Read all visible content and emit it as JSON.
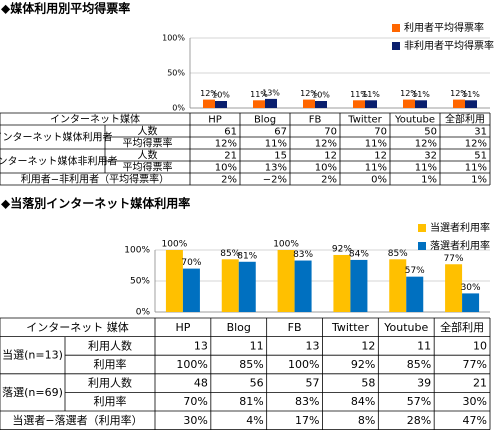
{
  "chart_data": [
    {
      "type": "bar",
      "title": "◆媒体利用別平均得票率",
      "categories": [
        "HP",
        "Blog",
        "FB",
        "Twitter",
        "Youtube",
        "全部利用"
      ],
      "series": [
        {
          "name": "利用者平均得票率",
          "color": "#ff6600",
          "values": [
            12,
            11,
            12,
            11,
            12,
            12
          ],
          "value_labels": [
            "12%",
            "11%",
            "12%",
            "11%",
            "12%",
            "12%"
          ]
        },
        {
          "name": "非利用者平均得票率",
          "color": "#0a1f6e",
          "values": [
            10,
            13,
            10,
            11,
            11,
            11
          ],
          "value_labels": [
            "10%",
            "13%",
            "10%",
            "11%",
            "11%",
            "11%"
          ]
        }
      ],
      "ylim": [
        0,
        100
      ],
      "yticks": [
        {
          "value": 0,
          "label": "0%"
        },
        {
          "value": 50,
          "label": "50%"
        },
        {
          "value": 100,
          "label": "100%"
        }
      ],
      "grid": true,
      "legend": "top-right",
      "table": {
        "header": {
          "label": "インターネット媒体",
          "columns": [
            "HP",
            "Blog",
            "FB",
            "Twitter",
            "Youtube",
            "全部利用"
          ]
        },
        "groups": [
          {
            "label": "インターネット媒体利用者",
            "rows": [
              {
                "label": "人数",
                "cells": [
                  "61",
                  "67",
                  "70",
                  "70",
                  "50",
                  "31"
                ]
              },
              {
                "label": "平均得票率",
                "cells": [
                  "12%",
                  "11%",
                  "12%",
                  "11%",
                  "12%",
                  "12%"
                ]
              }
            ]
          },
          {
            "label": "インターネット媒体非利用者",
            "rows": [
              {
                "label": "人数",
                "cells": [
                  "21",
                  "15",
                  "12",
                  "12",
                  "32",
                  "51"
                ]
              },
              {
                "label": "平均得票率",
                "cells": [
                  "10%",
                  "13%",
                  "10%",
                  "11%",
                  "11%",
                  "11%"
                ]
              }
            ]
          }
        ],
        "footer": {
          "label": "利用者−非利用者（平均得票率）",
          "cells": [
            "2%",
            "−2%",
            "2%",
            "0%",
            "1%",
            "1%"
          ]
        }
      }
    },
    {
      "type": "bar",
      "title": "◆当落別インターネット媒体利用率",
      "categories": [
        "HP",
        "Blog",
        "FB",
        "Twitter",
        "Youtube",
        "全部利用"
      ],
      "series": [
        {
          "name": "当選者利用率",
          "color": "#ffc000",
          "values": [
            100,
            85,
            100,
            92,
            85,
            77
          ],
          "value_labels": [
            "100%",
            "85%",
            "100%",
            "92%",
            "85%",
            "77%"
          ]
        },
        {
          "name": "落選者利用率",
          "color": "#0070c0",
          "values": [
            70,
            81,
            83,
            84,
            57,
            30
          ],
          "value_labels": [
            "70%",
            "81%",
            "83%",
            "84%",
            "57%",
            "30%"
          ]
        }
      ],
      "ylim": [
        0,
        100
      ],
      "yticks": [
        {
          "value": 0,
          "label": "0%"
        },
        {
          "value": 50,
          "label": "50%"
        },
        {
          "value": 100,
          "label": "100%"
        }
      ],
      "grid": true,
      "legend": "top-right",
      "table": {
        "header": {
          "label": "インターネット 媒体",
          "columns": [
            "HP",
            "Blog",
            "FB",
            "Twitter",
            "Youtube",
            "全部利用"
          ]
        },
        "groups": [
          {
            "label": "当選(n=13)",
            "rows": [
              {
                "label": "利用人数",
                "cells": [
                  "13",
                  "11",
                  "13",
                  "12",
                  "11",
                  "10"
                ]
              },
              {
                "label": "利用率",
                "cells": [
                  "100%",
                  "85%",
                  "100%",
                  "92%",
                  "85%",
                  "77%"
                ]
              }
            ]
          },
          {
            "label": "落選(n=69)",
            "rows": [
              {
                "label": "利用人数",
                "cells": [
                  "48",
                  "56",
                  "57",
                  "58",
                  "39",
                  "21"
                ]
              },
              {
                "label": "利用率",
                "cells": [
                  "70%",
                  "81%",
                  "83%",
                  "84%",
                  "57%",
                  "30%"
                ]
              }
            ]
          }
        ],
        "footer": {
          "label": "当選者−落選者（利用率）",
          "cells": [
            "30%",
            "4%",
            "17%",
            "8%",
            "28%",
            "47%"
          ]
        }
      }
    }
  ]
}
